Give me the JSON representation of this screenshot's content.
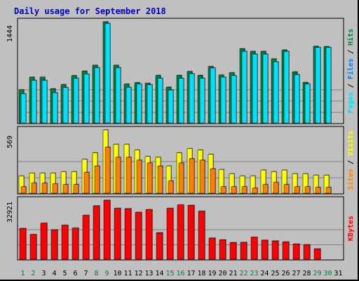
{
  "chart_data": {
    "type": "bar",
    "title": "Daily usage for September 2018",
    "days": [
      "1",
      "2",
      "3",
      "4",
      "5",
      "6",
      "7",
      "8",
      "9",
      "10",
      "11",
      "12",
      "13",
      "14",
      "15",
      "16",
      "17",
      "18",
      "19",
      "20",
      "21",
      "22",
      "23",
      "24",
      "25",
      "26",
      "27",
      "28",
      "29",
      "30",
      "31"
    ],
    "weekend_days": [
      "1",
      "2",
      "8",
      "9",
      "15",
      "16",
      "22",
      "23",
      "29",
      "30"
    ],
    "colors": {
      "background": "#c0c0c0",
      "plot_background": "#ffffff",
      "hits": "#008040",
      "files": "#0080ff",
      "pages": "#00e0ff",
      "visits": "#ff8000",
      "sites": "#ffff00",
      "kbytes": "#ff0000",
      "weekday_label": "#000000",
      "weekend_label": "#008040",
      "title": "#0000cc"
    },
    "panels": [
      {
        "id": "hits-files-pages",
        "ymax_label": "1444",
        "ymax": 1444,
        "legend": [
          {
            "text": "Hits",
            "color": "#008040"
          },
          {
            "text": "Files",
            "color": "#0080ff"
          },
          {
            "text": "Pages",
            "color": "#00e0ff"
          }
        ],
        "series": [
          {
            "name": "Hits",
            "color": "#008040",
            "values": [
              473,
              653,
              653,
              489,
              548,
              676,
              740,
              823,
              1444,
              823,
              555,
              575,
              566,
              680,
              511,
              680,
              734,
              680,
              807,
              684,
              717,
              1060,
              1022,
              1022,
              914,
              1042,
              730,
              578,
              1094,
              1090,
              0
            ]
          },
          {
            "name": "Pages",
            "color": "#00e0ff",
            "values": [
              415,
              608,
              608,
              431,
              505,
              637,
              698,
              790,
              1420,
              790,
              509,
              555,
              546,
              637,
              470,
              637,
              702,
              637,
              784,
              653,
              676,
              1022,
              982,
              982,
              872,
              1022,
              690,
              555,
              1078,
              1078,
              0
            ]
          }
        ]
      },
      {
        "id": "visits-sites",
        "ymax_label": "569",
        "ymax": 569,
        "legend": [
          {
            "text": "Visits",
            "color": "#ffff00"
          },
          {
            "text": "Sites",
            "color": "#ff8000"
          }
        ],
        "series": [
          {
            "name": "Visits",
            "color": "#ffff00",
            "values": [
              155,
              181,
              181,
              181,
              194,
              194,
              305,
              362,
              569,
              440,
              440,
              388,
              330,
              323,
              245,
              362,
              401,
              388,
              349,
              213,
              175,
              155,
              155,
              208,
              194,
              208,
              175,
              175,
              162,
              162,
              0
            ]
          },
          {
            "name": "Sites",
            "color": "#ff8000",
            "values": [
              58,
              91,
              91,
              84,
              78,
              78,
              188,
              245,
              414,
              323,
              323,
              297,
              272,
              245,
              110,
              272,
              310,
              297,
              220,
              58,
              58,
              58,
              45,
              78,
              97,
              78,
              58,
              58,
              52,
              52,
              0
            ]
          }
        ]
      },
      {
        "id": "kbytes",
        "ymax_label": "32921",
        "ymax": 32921,
        "legend": [
          {
            "text": "KBytes",
            "color": "#ff0000"
          }
        ],
        "series": [
          {
            "name": "KBytes",
            "color": "#ff0000",
            "values": [
              17200,
              13800,
              20100,
              16400,
              19000,
              17400,
              24500,
              29800,
              32900,
              28400,
              28200,
              26200,
              27700,
              14800,
              28400,
              30300,
              30100,
              26800,
              11800,
              10800,
              9300,
              9400,
              12300,
              10600,
              10200,
              9700,
              8500,
              8100,
              5800,
              0,
              0
            ]
          }
        ]
      }
    ]
  }
}
